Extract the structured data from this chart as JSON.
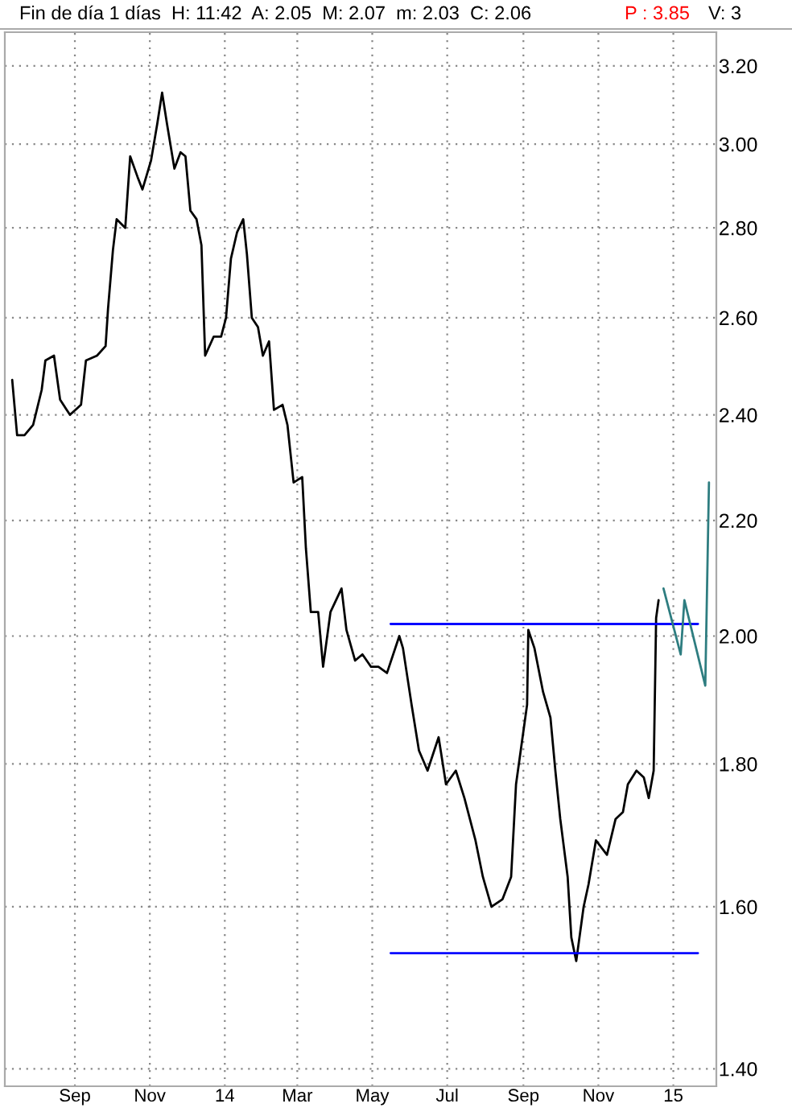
{
  "chart_data": {
    "type": "line",
    "title": "Fin de día 1 días  H: 11:42  A: 2.05  M: 2.07  m: 2.03  C: 2.06",
    "annotations": [
      "P : 3.85",
      "V: 3"
    ],
    "log": "y",
    "grid": true,
    "line_style": "solid",
    "marker": "none",
    "xlim": [
      "2013-07-06",
      "2015-02-05"
    ],
    "ylim": [
      1.38,
      3.29
    ],
    "xticks": [
      {
        "value": "2013-09-01",
        "label": "Sep"
      },
      {
        "value": "2013-11-01",
        "label": "Nov"
      },
      {
        "value": "2014-01-01",
        "label": "14"
      },
      {
        "value": "2014-03-01",
        "label": "Mar"
      },
      {
        "value": "2014-05-01",
        "label": "May"
      },
      {
        "value": "2014-07-01",
        "label": "Jul"
      },
      {
        "value": "2014-09-01",
        "label": "Sep"
      },
      {
        "value": "2014-11-01",
        "label": "Nov"
      },
      {
        "value": "2015-01-01",
        "label": "15"
      }
    ],
    "yticks": [
      {
        "value": 1.4,
        "label": "1.40"
      },
      {
        "value": 1.6,
        "label": "1.60"
      },
      {
        "value": 1.8,
        "label": "1.80"
      },
      {
        "value": 2.0,
        "label": "2.00"
      },
      {
        "value": 2.2,
        "label": "2.20"
      },
      {
        "value": 2.4,
        "label": "2.40"
      },
      {
        "value": 2.6,
        "label": "2.60"
      },
      {
        "value": 2.8,
        "label": "2.80"
      },
      {
        "value": 3.0,
        "label": "3.00"
      },
      {
        "value": 3.2,
        "label": "3.20"
      }
    ],
    "series": [
      {
        "color": "#000000",
        "x": [
          "2013-07-12",
          "2013-07-16",
          "2013-07-22",
          "2013-07-29",
          "2013-08-05",
          "2013-08-08",
          "2013-08-15",
          "2013-08-20",
          "2013-08-28",
          "2013-09-06",
          "2013-09-10",
          "2013-09-19",
          "2013-09-26",
          "2013-09-28",
          "2013-10-02",
          "2013-10-05",
          "2013-10-12",
          "2013-10-16",
          "2013-10-22",
          "2013-10-26",
          "2013-11-02",
          "2013-11-07",
          "2013-11-11",
          "2013-11-15",
          "2013-11-21",
          "2013-11-26",
          "2013-11-30",
          "2013-12-04",
          "2013-12-09",
          "2013-12-13",
          "2013-12-16",
          "2013-12-23",
          "2013-12-29",
          "2014-01-02",
          "2014-01-06",
          "2014-01-11",
          "2014-01-16",
          "2014-01-19",
          "2014-01-23",
          "2014-01-28",
          "2014-02-01",
          "2014-02-06",
          "2014-02-10",
          "2014-02-17",
          "2014-02-21",
          "2014-02-26",
          "2014-03-05",
          "2014-03-08",
          "2014-03-12",
          "2014-03-18",
          "2014-03-22",
          "2014-03-28",
          "2014-04-06",
          "2014-04-10",
          "2014-04-17",
          "2014-04-23",
          "2014-04-30",
          "2014-05-06",
          "2014-05-13",
          "2014-05-23",
          "2014-05-26",
          "2014-06-02",
          "2014-06-08",
          "2014-06-15",
          "2014-06-24",
          "2014-06-30",
          "2014-07-08",
          "2014-07-15",
          "2014-07-24",
          "2014-07-30",
          "2014-08-06",
          "2014-08-15",
          "2014-08-22",
          "2014-08-26",
          "2014-09-04",
          "2014-09-05",
          "2014-09-10",
          "2014-09-17",
          "2014-09-23",
          "2014-09-27",
          "2014-10-01",
          "2014-10-07",
          "2014-10-10",
          "2014-10-14",
          "2014-10-20",
          "2014-10-24",
          "2014-10-30",
          "2014-11-08",
          "2014-11-15",
          "2014-11-21",
          "2014-11-25",
          "2014-12-02",
          "2014-12-08",
          "2014-12-12",
          "2014-12-16",
          "2014-12-18",
          "2014-12-20"
        ],
        "values": [
          2.47,
          2.36,
          2.36,
          2.38,
          2.45,
          2.51,
          2.52,
          2.43,
          2.4,
          2.42,
          2.51,
          2.52,
          2.54,
          2.62,
          2.75,
          2.82,
          2.8,
          2.97,
          2.92,
          2.89,
          2.96,
          3.05,
          3.13,
          3.05,
          2.94,
          2.98,
          2.97,
          2.84,
          2.82,
          2.76,
          2.52,
          2.56,
          2.56,
          2.6,
          2.73,
          2.79,
          2.82,
          2.74,
          2.6,
          2.58,
          2.52,
          2.55,
          2.41,
          2.42,
          2.38,
          2.27,
          2.28,
          2.15,
          2.04,
          2.04,
          1.95,
          2.04,
          2.08,
          2.01,
          1.96,
          1.97,
          1.95,
          1.95,
          1.94,
          2.0,
          1.98,
          1.89,
          1.82,
          1.79,
          1.84,
          1.77,
          1.79,
          1.75,
          1.69,
          1.64,
          1.6,
          1.61,
          1.64,
          1.77,
          1.89,
          2.01,
          1.98,
          1.91,
          1.87,
          1.79,
          1.72,
          1.64,
          1.56,
          1.53,
          1.6,
          1.63,
          1.69,
          1.67,
          1.72,
          1.73,
          1.77,
          1.79,
          1.78,
          1.75,
          1.79,
          2.03,
          2.06
        ]
      },
      {
        "color": "#0000ff",
        "x": [
          "2014-05-16",
          "2015-01-21"
        ],
        "values": [
          2.02,
          2.02
        ]
      },
      {
        "color": "#0000ff",
        "x": [
          "2014-05-16",
          "2015-01-21"
        ],
        "values": [
          1.54,
          1.54
        ]
      },
      {
        "color": "#2e7d80",
        "x": [
          "2014-12-24",
          "2015-01-07",
          "2015-01-10",
          "2015-01-27",
          "2015-01-30"
        ],
        "values": [
          2.08,
          1.97,
          2.06,
          1.92,
          2.27
        ]
      }
    ]
  }
}
